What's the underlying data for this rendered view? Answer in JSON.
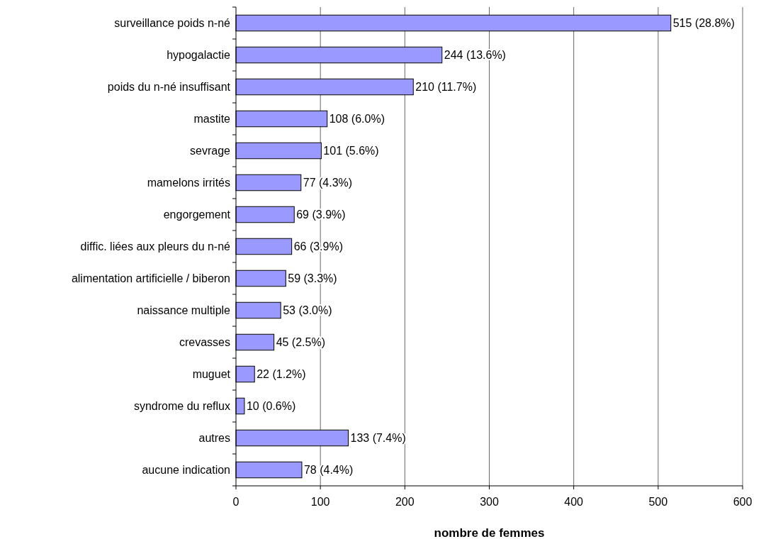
{
  "chart_data": {
    "type": "bar",
    "orientation": "horizontal",
    "xlabel": "nombre de femmes",
    "categories": [
      "surveillance poids n-né",
      "hypogalactie",
      "poids du n-né insuffisant",
      "mastite",
      "sevrage",
      "mamelons irrités",
      "engorgement",
      "diffic. liées aux pleurs du n-né",
      "alimentation artificielle / biberon",
      "naissance multiple",
      "crevasses",
      "muguet",
      "syndrome du reflux",
      "autres",
      "aucune indication"
    ],
    "values": [
      515,
      244,
      210,
      108,
      101,
      77,
      69,
      66,
      59,
      53,
      45,
      22,
      10,
      133,
      78
    ],
    "value_labels": [
      "515 (28.8%)",
      "244 (13.6%)",
      "210 (11.7%)",
      "108 (6.0%)",
      "101 (5.6%)",
      "77 (4.3%)",
      "69 (3.9%)",
      "66 (3.9%)",
      "59 (3.3%)",
      "53 (3.0%)",
      "45 (2.5%)",
      "22 (1.2%)",
      "10 (0.6%)",
      "133 (7.4%)",
      "78 (4.4%)"
    ],
    "color": "#9999ff",
    "xlim": [
      0,
      600
    ],
    "xticks": [
      0,
      100,
      200,
      300,
      400,
      500,
      600
    ],
    "grid": "x"
  }
}
